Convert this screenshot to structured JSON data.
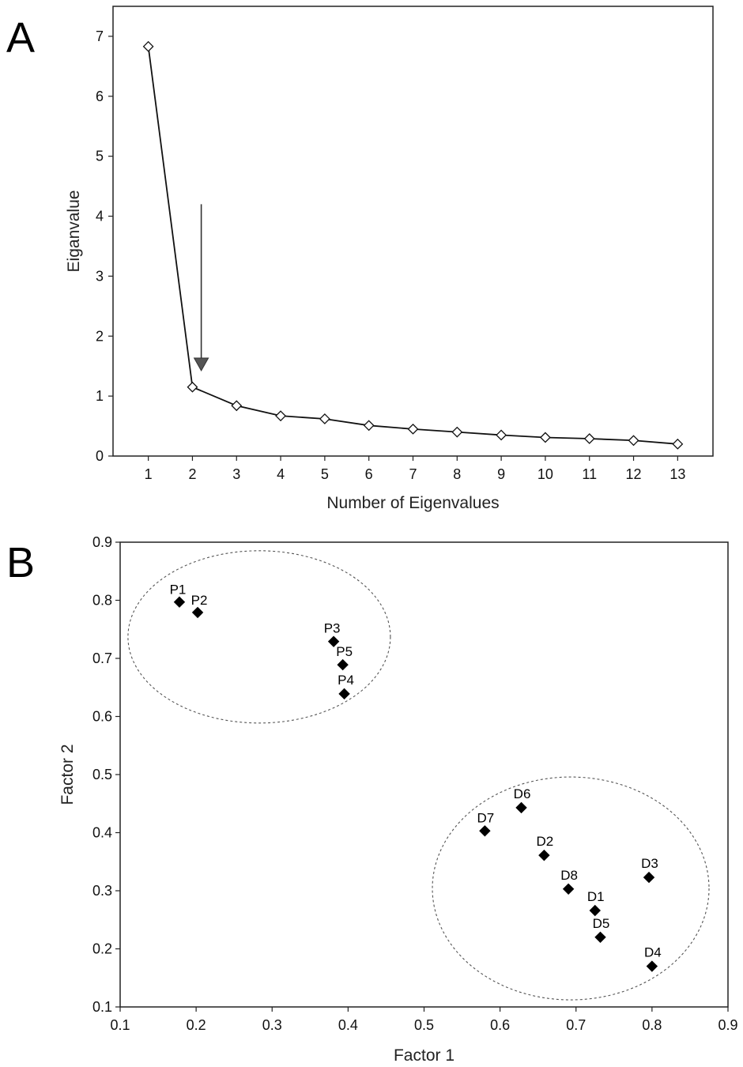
{
  "chart_data": [
    {
      "panel": "A",
      "type": "line",
      "xlabel": "Number of Eigenvalues",
      "ylabel": "Eiganvalue",
      "x": [
        1,
        2,
        3,
        4,
        5,
        6,
        7,
        8,
        9,
        10,
        11,
        12,
        13
      ],
      "values": [
        6.83,
        1.15,
        0.84,
        0.67,
        0.62,
        0.51,
        0.45,
        0.4,
        0.35,
        0.31,
        0.29,
        0.26,
        0.2
      ],
      "xlim": [
        0.2,
        13.8
      ],
      "ylim": [
        0,
        7.5
      ],
      "xticks": [
        1,
        2,
        3,
        4,
        5,
        6,
        7,
        8,
        9,
        10,
        11,
        12,
        13
      ],
      "yticks": [
        0,
        1,
        2,
        3,
        4,
        5,
        6,
        7
      ],
      "marker": "open-diamond",
      "annotation_arrow": {
        "x": 2.2,
        "y_from": 4.2,
        "y_to": 1.45
      },
      "grid": false
    },
    {
      "panel": "B",
      "type": "scatter",
      "xlabel": "Factor 1",
      "ylabel": "Factor 2",
      "xlim": [
        0.1,
        0.9
      ],
      "ylim": [
        0.1,
        0.9
      ],
      "xticks": [
        0.1,
        0.2,
        0.3,
        0.4,
        0.5,
        0.6,
        0.7,
        0.8,
        0.9
      ],
      "yticks": [
        0.1,
        0.2,
        0.3,
        0.4,
        0.5,
        0.6,
        0.7,
        0.8,
        0.9
      ],
      "marker": "filled-diamond",
      "grid": false,
      "points": [
        {
          "label": "P1",
          "x": 0.178,
          "y": 0.797
        },
        {
          "label": "P2",
          "x": 0.202,
          "y": 0.779
        },
        {
          "label": "P3",
          "x": 0.381,
          "y": 0.729
        },
        {
          "label": "P5",
          "x": 0.393,
          "y": 0.689
        },
        {
          "label": "P4",
          "x": 0.395,
          "y": 0.639
        },
        {
          "label": "D6",
          "x": 0.628,
          "y": 0.443
        },
        {
          "label": "D7",
          "x": 0.58,
          "y": 0.403
        },
        {
          "label": "D2",
          "x": 0.658,
          "y": 0.361
        },
        {
          "label": "D8",
          "x": 0.69,
          "y": 0.303
        },
        {
          "label": "D3",
          "x": 0.796,
          "y": 0.323
        },
        {
          "label": "D1",
          "x": 0.725,
          "y": 0.266
        },
        {
          "label": "D5",
          "x": 0.732,
          "y": 0.22
        },
        {
          "label": "D4",
          "x": 0.8,
          "y": 0.17
        }
      ],
      "groups": [
        {
          "center_x": 0.283,
          "center_y": 0.737
        },
        {
          "center_x": 0.693,
          "center_y": 0.304
        }
      ]
    }
  ],
  "panel_labels": {
    "a": "A",
    "b": "B"
  }
}
